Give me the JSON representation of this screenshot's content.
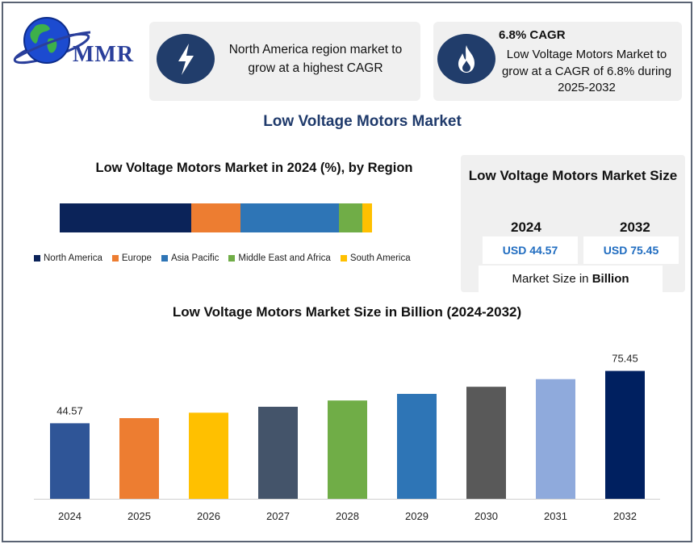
{
  "brand": {
    "logo_text": "MMR"
  },
  "cards": {
    "region": {
      "icon": "lightning-icon",
      "text": "North America region market to grow at a highest CAGR"
    },
    "cagr": {
      "icon": "flame-icon",
      "title": "6.8% CAGR",
      "text": "Low Voltage Motors Market to grow at a CAGR of 6.8% during 2025-2032"
    }
  },
  "main_title": "Low Voltage Motors Market",
  "size_panel": {
    "title": "Low Voltage Motors Market Size",
    "year_1": "2024",
    "year_2": "2032",
    "value_1": "USD 44.57",
    "value_2": "USD 75.45",
    "unit_prefix": "Market Size in ",
    "unit_bold": "Billion"
  },
  "colors": {
    "north_america": "#0b2359",
    "europe": "#ed7d31",
    "asia_pacific": "#2e75b6",
    "middle_east_africa": "#70ad47",
    "south_america": "#ffc000"
  },
  "chart_data": [
    {
      "type": "bar",
      "orientation": "horizontal-stacked",
      "title": "Low Voltage Motors Market in 2024 (%), by Region",
      "series": [
        {
          "name": "North America",
          "values": [
            42
          ],
          "color": "#0b2359"
        },
        {
          "name": "Europe",
          "values": [
            16
          ],
          "color": "#ed7d31"
        },
        {
          "name": "Asia Pacific",
          "values": [
            31.5
          ],
          "color": "#2e75b6"
        },
        {
          "name": "Middle East and Africa",
          "values": [
            7.5
          ],
          "color": "#70ad47"
        },
        {
          "name": "South America",
          "values": [
            3
          ],
          "color": "#ffc000"
        }
      ],
      "legend": "bottom"
    },
    {
      "type": "bar",
      "title": "Low Voltage Motors Market Size in Billion (2024-2032)",
      "categories": [
        "2024",
        "2025",
        "2026",
        "2027",
        "2028",
        "2029",
        "2030",
        "2031",
        "2032"
      ],
      "values": [
        44.57,
        47.6,
        50.8,
        54.3,
        58.0,
        61.9,
        66.1,
        70.6,
        75.45
      ],
      "data_labels": [
        "44.57",
        "",
        "",
        "",
        "",
        "",
        "",
        "",
        "75.45"
      ],
      "bar_colors": [
        "#2f5597",
        "#ed7d31",
        "#ffc000",
        "#44546a",
        "#70ad47",
        "#2e75b6",
        "#595959",
        "#8faadc",
        "#002060"
      ],
      "ylim": [
        0,
        80
      ],
      "grid": false
    }
  ]
}
